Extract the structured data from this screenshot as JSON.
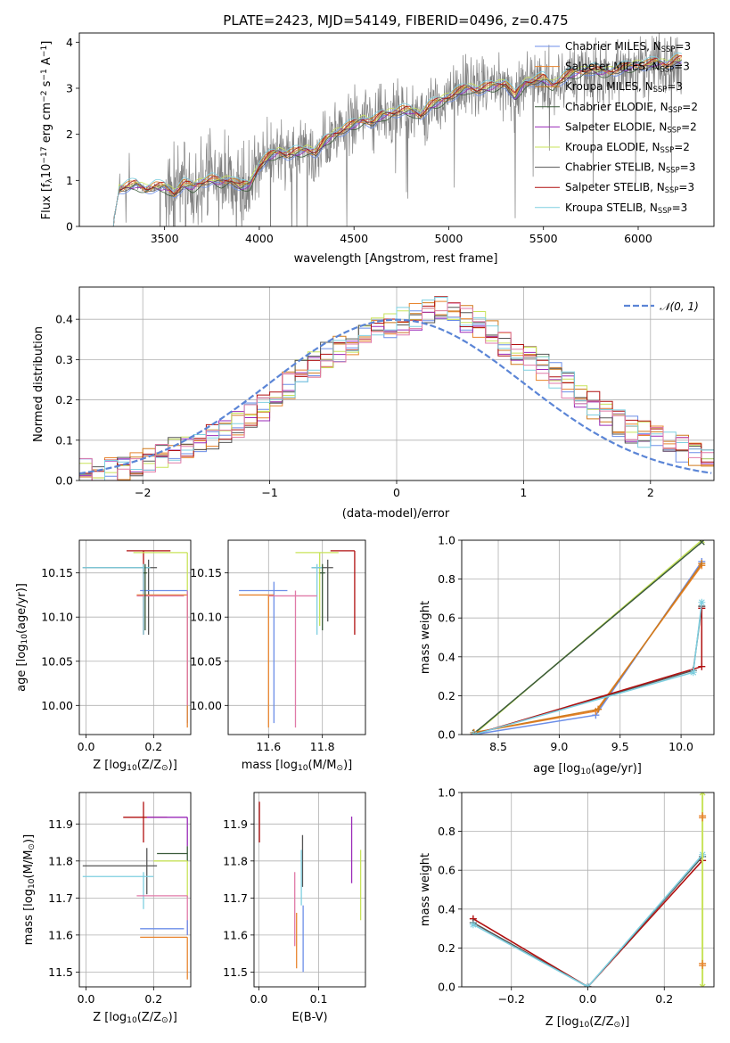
{
  "colors": {
    "Chabrier MILES": "#6c8ee8",
    "Salpeter MILES": "#e8852f",
    "Kroupa MILES": "#d07a1c",
    "Chabrier ELODIE": "#3a5a3a",
    "Salpeter ELODIE": "#9a2ab8",
    "Kroupa ELODIE": "#c8e35a",
    "Chabrier STELIB": "#555555",
    "Salpeter STELIB": "#b01010",
    "Kroupa STELIB": "#7ecfe0",
    "data": "#808080",
    "normal": "#5b85d6",
    "pink": "#e07aa8"
  },
  "chart_data": [
    {
      "id": "spectrum",
      "type": "line",
      "title": "PLATE=2423, MJD=54149, FIBERID=0496, z=0.475",
      "xlabel": "wavelength [Angstrom, rest frame]",
      "ylabel": "Flux [f",
      "ylabel_parts": {
        "main": "Flux [f",
        "sub": "λ",
        "rest": "10",
        "sup1": "−17",
        "mid": " erg cm",
        "sup2": "−2",
        "s": " s",
        "sup3": "−1",
        "end": " A",
        "sup4": "−1",
        "close": "]"
      },
      "xlim": [
        3050,
        6400
      ],
      "ylim": [
        0,
        4.2
      ],
      "xticks": [
        "3500",
        "4000",
        "4500",
        "5000",
        "5500",
        "6000"
      ],
      "yticks": [
        "0",
        "1",
        "2",
        "3",
        "4"
      ],
      "legend_position": "top-right",
      "legend": [
        {
          "name": "Chabrier MILES, N",
          "sub": "SSP",
          "suffix": "=3"
        },
        {
          "name": "Salpeter MILES, N",
          "sub": "SSP",
          "suffix": "=3"
        },
        {
          "name": "Kroupa MILES, N",
          "sub": "SSP",
          "suffix": "=3"
        },
        {
          "name": "Chabrier ELODIE, N",
          "sub": "SSP",
          "suffix": "=2"
        },
        {
          "name": "Salpeter ELODIE, N",
          "sub": "SSP",
          "suffix": "=2"
        },
        {
          "name": "Kroupa ELODIE, N",
          "sub": "SSP",
          "suffix": "=2"
        },
        {
          "name": "Chabrier STELIB, N",
          "sub": "SSP",
          "suffix": "=3"
        },
        {
          "name": "Salpeter STELIB, N",
          "sub": "SSP",
          "suffix": "=3"
        },
        {
          "name": "Kroupa STELIB, N",
          "sub": "SSP",
          "suffix": "=3"
        }
      ],
      "model_continuum": {
        "x": [
          3230,
          3260,
          3300,
          3350,
          3400,
          3450,
          3500,
          3550,
          3600,
          3650,
          3700,
          3750,
          3800,
          3850,
          3900,
          3950,
          4000,
          4050,
          4100,
          4150,
          4200,
          4250,
          4300,
          4350,
          4400,
          4450,
          4500,
          4550,
          4600,
          4650,
          4700,
          4750,
          4800,
          4850,
          4900,
          4950,
          5000,
          5050,
          5100,
          5150,
          5200,
          5250,
          5300,
          5350,
          5400,
          5450,
          5500,
          5550,
          5600,
          5650,
          5700,
          5750,
          5800,
          5850,
          5900,
          5950,
          6000,
          6050,
          6100,
          6150,
          6200
        ],
        "y": [
          0.1,
          0.8,
          0.85,
          0.9,
          0.8,
          0.85,
          0.85,
          0.7,
          0.9,
          0.85,
          0.95,
          1.0,
          0.95,
          1.0,
          0.85,
          0.9,
          1.3,
          1.5,
          1.6,
          1.55,
          1.6,
          1.65,
          1.6,
          1.85,
          2.0,
          2.1,
          2.2,
          2.3,
          2.25,
          2.4,
          2.45,
          2.5,
          2.5,
          2.4,
          2.6,
          2.7,
          2.8,
          2.9,
          3.0,
          2.95,
          3.0,
          3.05,
          3.1,
          2.8,
          3.1,
          3.15,
          3.2,
          3.05,
          3.2,
          3.3,
          3.35,
          3.4,
          3.35,
          3.35,
          3.4,
          3.45,
          3.5,
          3.5,
          3.55,
          3.5,
          3.6
        ]
      }
    },
    {
      "id": "residuals",
      "type": "line",
      "xlabel": "(data-model)/error",
      "ylabel": "Normed distribution",
      "xlim": [
        -2.5,
        2.5
      ],
      "ylim": [
        0,
        0.48
      ],
      "xticks": [
        "−2",
        "−1",
        "0",
        "1",
        "2"
      ],
      "yticks": [
        "0.0",
        "0.1",
        "0.2",
        "0.3",
        "0.4"
      ],
      "legend_position": "top-right",
      "legend": [
        {
          "name": "𝒩(0, 1)"
        }
      ],
      "histogram_envelope": {
        "x": [
          -2.5,
          -2.3,
          -2.1,
          -1.9,
          -1.7,
          -1.5,
          -1.3,
          -1.1,
          -0.9,
          -0.7,
          -0.5,
          -0.3,
          -0.1,
          0.1,
          0.3,
          0.5,
          0.7,
          0.9,
          1.1,
          1.3,
          1.5,
          1.7,
          1.9,
          2.1,
          2.3,
          2.5
        ],
        "y": [
          0.02,
          0.02,
          0.03,
          0.05,
          0.08,
          0.1,
          0.13,
          0.17,
          0.22,
          0.28,
          0.32,
          0.35,
          0.38,
          0.4,
          0.43,
          0.41,
          0.38,
          0.33,
          0.29,
          0.25,
          0.2,
          0.15,
          0.12,
          0.1,
          0.07,
          0.05
        ]
      }
    },
    {
      "id": "age-vs-Z",
      "type": "scatter",
      "xlabel": "Z [log",
      "xlabel_parts": {
        "main": "Z [log",
        "sub": "10",
        "rest": "(Z/Z",
        "sub2": "⊙",
        "close": ")]"
      },
      "ylabel": "age  [log",
      "ylabel_parts": {
        "main": "age  [log",
        "sub": "10",
        "rest": "(age/yr)]"
      },
      "xlim": [
        -0.02,
        0.31
      ],
      "ylim": [
        9.967,
        10.187
      ],
      "xticks": [
        "0.0",
        "0.2"
      ],
      "yticks": [
        "10.00",
        "10.05",
        "10.10",
        "10.15"
      ]
    },
    {
      "id": "age-vs-mass",
      "type": "scatter",
      "xlabel": "mass [log",
      "xlabel_parts": {
        "main": "mass [log",
        "sub": "10",
        "rest": "(M/M",
        "sub2": "⊙",
        "close": ")]"
      },
      "xlim": [
        11.45,
        11.96
      ],
      "ylim": [
        9.967,
        10.187
      ],
      "xticks": [
        "11.6",
        "11.8"
      ],
      "yticks": [
        "10.00",
        "10.05",
        "10.10",
        "10.15"
      ]
    },
    {
      "id": "massweight-vs-age",
      "type": "line",
      "xlabel": "age  [log",
      "xlabel_parts": {
        "main": "age  [log",
        "sub": "10",
        "rest": "(age/yr)]"
      },
      "ylabel": "mass weight",
      "xlim": [
        8.2,
        10.27
      ],
      "ylim": [
        0,
        1
      ],
      "xticks": [
        "8.5",
        "9.0",
        "9.5",
        "10.0"
      ],
      "yticks": [
        "0.0",
        "0.2",
        "0.4",
        "0.6",
        "0.8",
        "1.0"
      ]
    },
    {
      "id": "mass-vs-Z",
      "type": "scatter",
      "xlabel": "Z [log",
      "xlabel_parts": {
        "main": "Z [log",
        "sub": "10",
        "rest": "(Z/Z",
        "sub2": "⊙",
        "close": ")]"
      },
      "ylabel": "mass [log",
      "ylabel_parts": {
        "main": "mass [log",
        "sub": "10",
        "rest": "(M/M",
        "sub2": "⊙",
        "close": ")]"
      },
      "xlim": [
        -0.02,
        0.31
      ],
      "ylim": [
        11.46,
        11.985
      ],
      "xticks": [
        "0.0",
        "0.2"
      ],
      "yticks": [
        "11.5",
        "11.6",
        "11.7",
        "11.8",
        "11.9"
      ]
    },
    {
      "id": "mass-vs-EBV",
      "type": "scatter",
      "xlabel": "E(B-V)",
      "xlim": [
        -0.008,
        0.178
      ],
      "ylim": [
        11.46,
        11.985
      ],
      "xticks": [
        "0.0",
        "0.1"
      ],
      "yticks": [
        "11.5",
        "11.6",
        "11.7",
        "11.8",
        "11.9"
      ]
    },
    {
      "id": "massweight-vs-Z",
      "type": "line",
      "xlabel": "Z [log",
      "xlabel_parts": {
        "main": "Z [log",
        "sub": "10",
        "rest": "(Z/Z",
        "sub2": "⊙",
        "close": ")]"
      },
      "ylabel": "mass weight",
      "xlim": [
        -0.33,
        0.33
      ],
      "ylim": [
        0,
        1
      ],
      "xticks": [
        "−0.2",
        "0.0",
        "0.2"
      ],
      "yticks": [
        "0.0",
        "0.2",
        "0.4",
        "0.6",
        "0.8",
        "1.0"
      ]
    }
  ]
}
